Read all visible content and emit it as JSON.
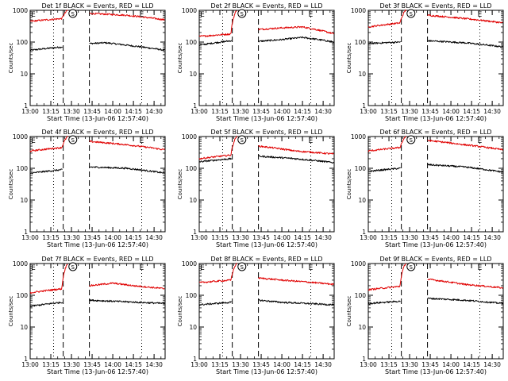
{
  "figure": {
    "background": "#ffffff"
  },
  "colors": {
    "events": "#000000",
    "lld": "#e00000",
    "axes": "#000000"
  },
  "chart_data": [
    {
      "type": "line",
      "title": "Det 1f BLACK = Events, RED = LLD",
      "xlabel": "Start Time (13-Jun-06 12:57:40)",
      "ylabel": "Counts/sec",
      "yscale": "log",
      "ylim": [
        1,
        1000
      ],
      "xlim": [
        "13:00",
        "14:38"
      ],
      "xticks": [
        "13:00",
        "13:15",
        "13:30",
        "13:45",
        "14:00",
        "14:15",
        "14:30"
      ],
      "yticks": [
        "1",
        "10",
        "100",
        "1000"
      ],
      "markers": [
        {
          "label": "E",
          "at": "13:00"
        },
        {
          "label": "S",
          "at": "13:31"
        },
        {
          "label": "E",
          "at": "14:21"
        }
      ],
      "dashed_lines": [
        "13:24",
        "13:43"
      ],
      "dotted_lines": [
        "13:17",
        "14:21"
      ],
      "series": [
        {
          "name": "Events",
          "color": "#000000",
          "x": [
            "13:00",
            "13:23",
            "13:43",
            "13:55",
            "14:10",
            "14:38"
          ],
          "y": [
            55,
            70,
            90,
            95,
            80,
            55
          ]
        },
        {
          "name": "LLD",
          "color": "#e00000",
          "x": [
            "13:00",
            "13:23",
            "13:27",
            "13:43",
            "14:10",
            "14:38"
          ],
          "y": [
            450,
            550,
            1000,
            800,
            700,
            500
          ]
        }
      ]
    },
    {
      "type": "line",
      "title": "Det 2f BLACK = Events, RED = LLD",
      "xlabel": "Start Time (13-Jun-06 12:57:40)",
      "ylabel": "Counts/sec",
      "yscale": "log",
      "ylim": [
        1,
        1000
      ],
      "xlim": [
        "13:00",
        "14:38"
      ],
      "xticks": [
        "13:00",
        "13:15",
        "13:30",
        "13:45",
        "14:00",
        "14:15",
        "14:30"
      ],
      "yticks": [
        "1",
        "10",
        "100",
        "1000"
      ],
      "markers": [
        {
          "label": "E",
          "at": "13:00"
        },
        {
          "label": "S",
          "at": "13:31"
        },
        {
          "label": "E",
          "at": "14:21"
        }
      ],
      "dashed_lines": [
        "13:24",
        "13:43"
      ],
      "dotted_lines": [
        "13:17",
        "14:21"
      ],
      "series": [
        {
          "name": "Events",
          "color": "#000000",
          "x": [
            "13:00",
            "13:23",
            "13:43",
            "14:00",
            "14:15",
            "14:38"
          ],
          "y": [
            80,
            110,
            105,
            120,
            140,
            100
          ]
        },
        {
          "name": "LLD",
          "color": "#e00000",
          "x": [
            "13:00",
            "13:23",
            "13:27",
            "13:43",
            "14:00",
            "14:15",
            "14:38"
          ],
          "y": [
            150,
            180,
            1000,
            250,
            280,
            300,
            180
          ]
        }
      ]
    },
    {
      "type": "line",
      "title": "Det 3f BLACK = Events, RED = LLD",
      "xlabel": "Start Time (13-Jun-06 12:57:40)",
      "ylabel": "Counts/sec",
      "yscale": "log",
      "ylim": [
        1,
        1000
      ],
      "xlim": [
        "13:00",
        "14:38"
      ],
      "xticks": [
        "13:00",
        "13:15",
        "13:30",
        "13:45",
        "14:00",
        "14:15",
        "14:30"
      ],
      "yticks": [
        "1",
        "10",
        "100",
        "1000"
      ],
      "markers": [
        {
          "label": "S",
          "at": "13:31"
        },
        {
          "label": "E",
          "at": "14:21"
        }
      ],
      "dashed_lines": [
        "13:24",
        "13:43"
      ],
      "dotted_lines": [
        "13:17",
        "14:21"
      ],
      "series": [
        {
          "name": "Events",
          "color": "#000000",
          "x": [
            "13:00",
            "13:23",
            "13:43",
            "14:10",
            "14:38"
          ],
          "y": [
            90,
            100,
            110,
            95,
            70
          ]
        },
        {
          "name": "LLD",
          "color": "#e00000",
          "x": [
            "13:00",
            "13:23",
            "13:27",
            "13:43",
            "14:10",
            "14:38"
          ],
          "y": [
            300,
            400,
            1000,
            700,
            550,
            400
          ]
        }
      ]
    },
    {
      "type": "line",
      "title": "Det 4f BLACK = Events, RED = LLD",
      "xlabel": "Start Time (13-Jun-06 12:57:40)",
      "ylabel": "Counts/sec",
      "yscale": "log",
      "ylim": [
        1,
        1000
      ],
      "xlim": [
        "13:00",
        "14:38"
      ],
      "xticks": [
        "13:00",
        "13:15",
        "13:30",
        "13:45",
        "14:00",
        "14:15",
        "14:30"
      ],
      "yticks": [
        "1",
        "10",
        "100",
        "1000"
      ],
      "markers": [
        {
          "label": "E",
          "at": "13:00"
        },
        {
          "label": "S",
          "at": "13:31"
        },
        {
          "label": "E",
          "at": "14:21"
        }
      ],
      "dashed_lines": [
        "13:24",
        "13:43"
      ],
      "dotted_lines": [
        "13:17",
        "14:21"
      ],
      "series": [
        {
          "name": "Events",
          "color": "#000000",
          "x": [
            "13:00",
            "13:23",
            "13:43",
            "14:10",
            "14:38"
          ],
          "y": [
            70,
            90,
            110,
            100,
            70
          ]
        },
        {
          "name": "LLD",
          "color": "#e00000",
          "x": [
            "13:00",
            "13:23",
            "13:27",
            "13:43",
            "14:10",
            "14:38"
          ],
          "y": [
            350,
            450,
            1000,
            700,
            550,
            380
          ]
        }
      ]
    },
    {
      "type": "line",
      "title": "Det 5f BLACK = Events, RED = LLD",
      "xlabel": "Start Time (13-Jun-06 12:57:40)",
      "ylabel": "Counts/sec",
      "yscale": "log",
      "ylim": [
        1,
        1000
      ],
      "xlim": [
        "13:00",
        "14:38"
      ],
      "xticks": [
        "13:00",
        "13:15",
        "13:30",
        "13:45",
        "14:00",
        "14:15",
        "14:30"
      ],
      "yticks": [
        "1",
        "10",
        "100",
        "1000"
      ],
      "markers": [
        {
          "label": "S",
          "at": "13:31"
        },
        {
          "label": "E",
          "at": "14:21"
        }
      ],
      "dashed_lines": [
        "13:24",
        "13:43"
      ],
      "dotted_lines": [
        "13:17",
        "14:21"
      ],
      "series": [
        {
          "name": "Events",
          "color": "#000000",
          "x": [
            "13:00",
            "13:23",
            "13:43",
            "14:10",
            "14:38"
          ],
          "y": [
            160,
            200,
            240,
            200,
            150
          ]
        },
        {
          "name": "LLD",
          "color": "#e00000",
          "x": [
            "13:00",
            "13:23",
            "13:27",
            "13:43",
            "14:10",
            "14:38"
          ],
          "y": [
            200,
            260,
            1000,
            500,
            350,
            280
          ]
        }
      ]
    },
    {
      "type": "line",
      "title": "Det 6f BLACK = Events, RED = LLD",
      "xlabel": "Start Time (13-Jun-06 12:57:40)",
      "ylabel": "Counts/sec",
      "yscale": "log",
      "ylim": [
        1,
        1000
      ],
      "xlim": [
        "13:00",
        "14:38"
      ],
      "xticks": [
        "13:00",
        "13:15",
        "13:30",
        "13:45",
        "14:00",
        "14:15",
        "14:30"
      ],
      "yticks": [
        "1",
        "10",
        "100",
        "1000"
      ],
      "markers": [
        {
          "label": "S",
          "at": "13:31"
        },
        {
          "label": "E",
          "at": "14:21"
        }
      ],
      "dashed_lines": [
        "13:24",
        "13:43"
      ],
      "dotted_lines": [
        "13:17",
        "14:21"
      ],
      "series": [
        {
          "name": "Events",
          "color": "#000000",
          "x": [
            "13:00",
            "13:23",
            "13:43",
            "14:10",
            "14:38"
          ],
          "y": [
            80,
            100,
            130,
            110,
            75
          ]
        },
        {
          "name": "LLD",
          "color": "#e00000",
          "x": [
            "13:00",
            "13:23",
            "13:27",
            "13:43",
            "14:10",
            "14:38"
          ],
          "y": [
            350,
            450,
            1000,
            750,
            550,
            380
          ]
        }
      ]
    },
    {
      "type": "line",
      "title": "Det 7f BLACK = Events, RED = LLD",
      "xlabel": "Start Time (13-Jun-06 12:57:40)",
      "ylabel": "Counts/sec",
      "yscale": "log",
      "ylim": [
        1,
        1000
      ],
      "xlim": [
        "13:00",
        "14:38"
      ],
      "xticks": [
        "13:00",
        "13:15",
        "13:30",
        "13:45",
        "14:00",
        "14:15",
        "14:30"
      ],
      "yticks": [
        "1",
        "10",
        "100",
        "1000"
      ],
      "markers": [
        {
          "label": "E",
          "at": "13:00"
        },
        {
          "label": "S",
          "at": "13:31"
        },
        {
          "label": "E",
          "at": "14:21"
        }
      ],
      "dashed_lines": [
        "13:24",
        "13:43"
      ],
      "dotted_lines": [
        "13:17",
        "14:21"
      ],
      "series": [
        {
          "name": "Events",
          "color": "#000000",
          "x": [
            "13:00",
            "13:23",
            "13:43",
            "14:00",
            "14:38"
          ],
          "y": [
            45,
            60,
            70,
            65,
            55
          ]
        },
        {
          "name": "LLD",
          "color": "#e00000",
          "x": [
            "13:00",
            "13:23",
            "13:27",
            "13:43",
            "14:00",
            "14:15",
            "14:38"
          ],
          "y": [
            120,
            160,
            1000,
            200,
            240,
            200,
            160
          ]
        }
      ]
    },
    {
      "type": "line",
      "title": "Det 8f BLACK = Events, RED = LLD",
      "xlabel": "Start Time (13-Jun-06 12:57:40)",
      "ylabel": "Counts/sec",
      "yscale": "log",
      "ylim": [
        1,
        1000
      ],
      "xlim": [
        "13:00",
        "14:38"
      ],
      "xticks": [
        "13:00",
        "13:15",
        "13:30",
        "13:45",
        "14:00",
        "14:15",
        "14:30"
      ],
      "yticks": [
        "1",
        "10",
        "100",
        "1000"
      ],
      "markers": [
        {
          "label": "E",
          "at": "13:00"
        },
        {
          "label": "S",
          "at": "13:31"
        },
        {
          "label": "E",
          "at": "14:21"
        }
      ],
      "dashed_lines": [
        "13:24",
        "13:43"
      ],
      "dotted_lines": [
        "13:17",
        "14:21"
      ],
      "series": [
        {
          "name": "Events",
          "color": "#000000",
          "x": [
            "13:00",
            "13:23",
            "13:43",
            "14:00",
            "14:38"
          ],
          "y": [
            50,
            60,
            70,
            60,
            50
          ]
        },
        {
          "name": "LLD",
          "color": "#e00000",
          "x": [
            "13:00",
            "13:23",
            "13:27",
            "13:43",
            "14:00",
            "14:38"
          ],
          "y": [
            250,
            300,
            1000,
            350,
            300,
            220
          ]
        }
      ]
    },
    {
      "type": "line",
      "title": "Det 9f BLACK = Events, RED = LLD",
      "xlabel": "Start Time (13-Jun-06 12:57:40)",
      "ylabel": "Counts/sec",
      "yscale": "log",
      "ylim": [
        1,
        1000
      ],
      "xlim": [
        "13:00",
        "14:38"
      ],
      "xticks": [
        "13:00",
        "13:15",
        "13:30",
        "13:45",
        "14:00",
        "14:15",
        "14:30"
      ],
      "yticks": [
        "1",
        "10",
        "100",
        "1000"
      ],
      "markers": [
        {
          "label": "S",
          "at": "13:31"
        },
        {
          "label": "E",
          "at": "14:21"
        }
      ],
      "dashed_lines": [
        "13:24",
        "13:43"
      ],
      "dotted_lines": [
        "13:17",
        "14:21"
      ],
      "series": [
        {
          "name": "Events",
          "color": "#000000",
          "x": [
            "13:00",
            "13:23",
            "13:43",
            "14:10",
            "14:38"
          ],
          "y": [
            55,
            65,
            80,
            70,
            55
          ]
        },
        {
          "name": "LLD",
          "color": "#e00000",
          "x": [
            "13:00",
            "13:23",
            "13:27",
            "13:43",
            "14:10",
            "14:38"
          ],
          "y": [
            150,
            190,
            1000,
            320,
            220,
            170
          ]
        }
      ]
    }
  ]
}
